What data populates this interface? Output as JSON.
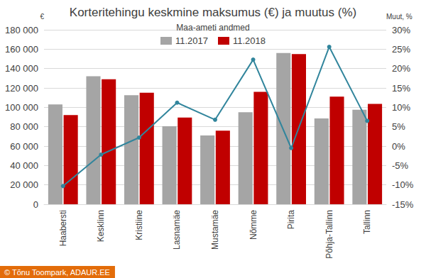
{
  "chart_data": {
    "type": "bar",
    "title": "Korteritehingu keskmine maksumus (€) ja muutus (%)",
    "subtitle": "Maa-ameti andmed",
    "y_label": "€",
    "y2_label": "Muut, %",
    "annotation": "© Tõnu Toompark, ADAUR.EE",
    "categories": [
      "Haabersti",
      "Kesklinn",
      "Kristiine",
      "Lasnamäe",
      "Mustamäe",
      "Nõmme",
      "Pirita",
      "Põhja-Tallinn",
      "Tallinn"
    ],
    "series": [
      {
        "name": "11.2017",
        "color": "#A5A5A5",
        "values": [
          103000,
          132000,
          112500,
          80500,
          71000,
          95000,
          156000,
          88500,
          97500
        ]
      },
      {
        "name": "11.2018",
        "color": "#C00000",
        "values": [
          92000,
          129000,
          115000,
          89500,
          76000,
          116000,
          155000,
          111000,
          103500
        ]
      },
      {
        "type": "line",
        "axis": "y2",
        "color": "#31859C",
        "marker": "circle",
        "values": [
          -10.3,
          -2.2,
          2.2,
          11.2,
          6.8,
          22.3,
          -0.5,
          25.6,
          6.5
        ]
      }
    ],
    "ylim": [
      0,
      180000
    ],
    "yticks": [
      0,
      {
        "value": 20000,
        "label": "20 000"
      },
      {
        "value": 40000,
        "label": "40 000"
      },
      {
        "value": 60000,
        "label": "60 000"
      },
      {
        "value": 80000,
        "label": "80 000"
      },
      {
        "value": 100000,
        "label": "100 000"
      },
      {
        "value": 120000,
        "label": "120 000"
      },
      {
        "value": 140000,
        "label": "140 000"
      },
      {
        "value": 160000,
        "label": "160 000"
      },
      {
        "value": 180000,
        "label": "180 000"
      }
    ],
    "y2lim": [
      -15,
      30
    ],
    "y2ticks": [
      {
        "value": -15,
        "label": "-15%"
      },
      {
        "value": -10,
        "label": "-10%"
      },
      {
        "value": -5,
        "label": "-5%"
      },
      {
        "value": 0,
        "label": "0%"
      },
      {
        "value": 5,
        "label": "5%"
      },
      {
        "value": 10,
        "label": "10%"
      },
      {
        "value": 15,
        "label": "15%"
      },
      {
        "value": 20,
        "label": "20%"
      },
      {
        "value": 25,
        "label": "25%"
      },
      {
        "value": 30,
        "label": "30%"
      }
    ],
    "grid": true,
    "legend": "top"
  }
}
